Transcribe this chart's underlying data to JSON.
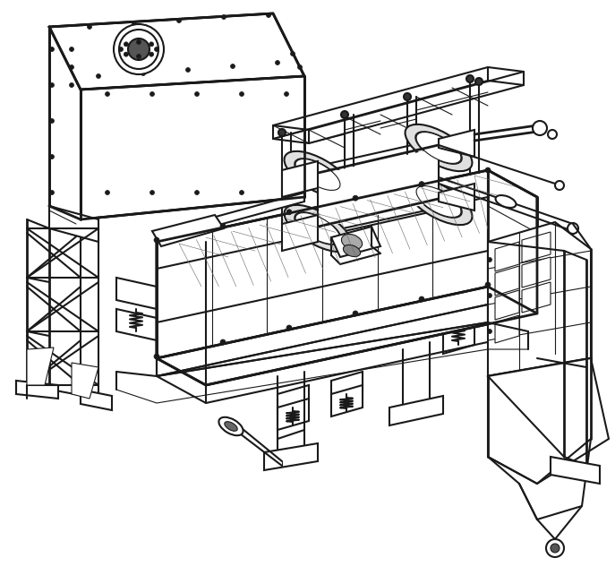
{
  "bg_color": "#ffffff",
  "line_color": "#1a1a1a",
  "lw_main": 1.5,
  "lw_thin": 0.8,
  "lw_thick": 2.0,
  "figsize": [
    6.87,
    6.42
  ],
  "dpi": 100
}
